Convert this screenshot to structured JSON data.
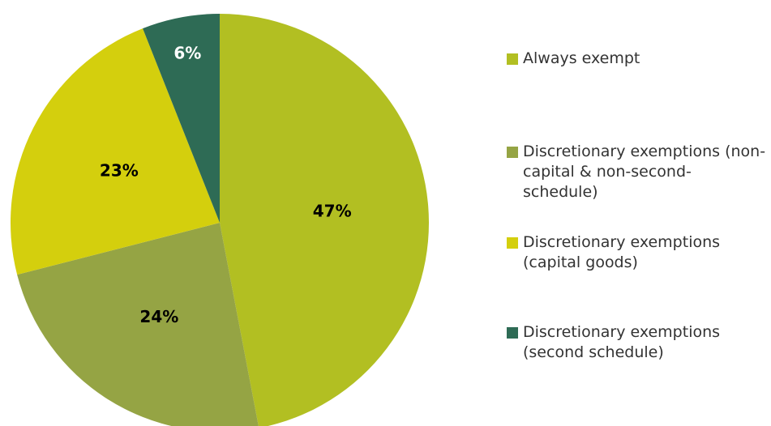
{
  "chart_data": {
    "type": "pie",
    "categories": [
      "Always exempt",
      "Discretionary exemptions (non-capital & non-second-schedule)",
      "Discretionary exemptions (capital goods)",
      "Discretionary exemptions (second schedule)"
    ],
    "values": [
      47,
      24,
      23,
      6
    ],
    "value_labels": [
      "47%",
      "24%",
      "23%",
      "6%"
    ],
    "colors": [
      "#b2bf22",
      "#95a444",
      "#d4cf0d",
      "#2e6b55"
    ],
    "legend": "right"
  }
}
